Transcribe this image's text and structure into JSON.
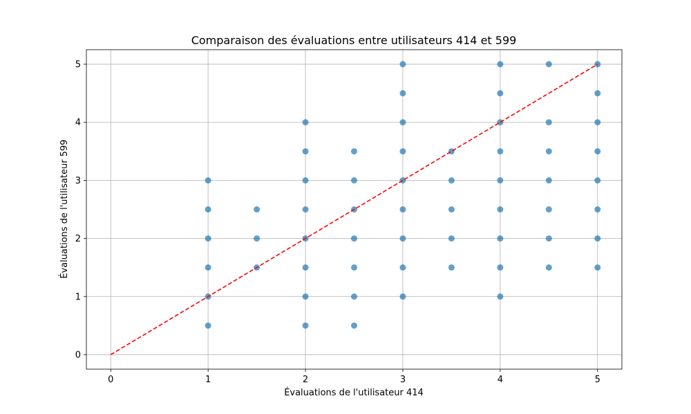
{
  "chart_data": {
    "type": "scatter",
    "title": "Comparaison des évaluations entre utilisateurs 414 et 599",
    "xlabel": "Évaluations de l'utilisateur 414",
    "ylabel": "Évaluations de l'utilisateur 599",
    "xlim": [
      -0.25,
      5.25
    ],
    "ylim": [
      -0.25,
      5.25
    ],
    "xticks": [
      0,
      1,
      2,
      3,
      4,
      5
    ],
    "yticks": [
      0,
      1,
      2,
      3,
      4,
      5
    ],
    "grid": true,
    "colors": {
      "points": "#1f77b4",
      "reference_line": "#ff0000",
      "grid": "#b0b0b0"
    },
    "series": [
      {
        "points": [
          [
            1,
            0.5
          ],
          [
            1,
            1
          ],
          [
            1,
            1.5
          ],
          [
            1,
            2
          ],
          [
            1,
            2.5
          ],
          [
            1,
            3
          ],
          [
            1.5,
            1.5
          ],
          [
            1.5,
            2
          ],
          [
            1.5,
            2.5
          ],
          [
            2,
            0.5
          ],
          [
            2,
            1
          ],
          [
            2,
            1.5
          ],
          [
            2,
            2
          ],
          [
            2,
            2.5
          ],
          [
            2,
            3
          ],
          [
            2,
            3.5
          ],
          [
            2,
            4
          ],
          [
            2.5,
            0.5
          ],
          [
            2.5,
            1
          ],
          [
            2.5,
            1.5
          ],
          [
            2.5,
            2
          ],
          [
            2.5,
            2.5
          ],
          [
            2.5,
            3
          ],
          [
            2.5,
            3.5
          ],
          [
            3,
            1
          ],
          [
            3,
            1.5
          ],
          [
            3,
            2
          ],
          [
            3,
            2.5
          ],
          [
            3,
            3
          ],
          [
            3,
            3.5
          ],
          [
            3,
            4
          ],
          [
            3,
            4.5
          ],
          [
            3,
            5
          ],
          [
            3.5,
            1.5
          ],
          [
            3.5,
            2
          ],
          [
            3.5,
            2.5
          ],
          [
            3.5,
            3
          ],
          [
            3.5,
            3.5
          ],
          [
            4,
            1
          ],
          [
            4,
            1.5
          ],
          [
            4,
            2
          ],
          [
            4,
            2.5
          ],
          [
            4,
            3
          ],
          [
            4,
            3.5
          ],
          [
            4,
            4
          ],
          [
            4,
            4.5
          ],
          [
            4,
            5
          ],
          [
            4.5,
            1.5
          ],
          [
            4.5,
            2
          ],
          [
            4.5,
            2.5
          ],
          [
            4.5,
            3
          ],
          [
            4.5,
            3.5
          ],
          [
            4.5,
            4
          ],
          [
            4.5,
            5
          ],
          [
            5,
            1.5
          ],
          [
            5,
            2
          ],
          [
            5,
            2.5
          ],
          [
            5,
            3
          ],
          [
            5,
            3.5
          ],
          [
            5,
            4
          ],
          [
            5,
            4.5
          ],
          [
            5,
            5
          ]
        ]
      }
    ],
    "reference_line": {
      "style": "dashed",
      "from": [
        0,
        0
      ],
      "to": [
        5,
        5
      ]
    }
  }
}
